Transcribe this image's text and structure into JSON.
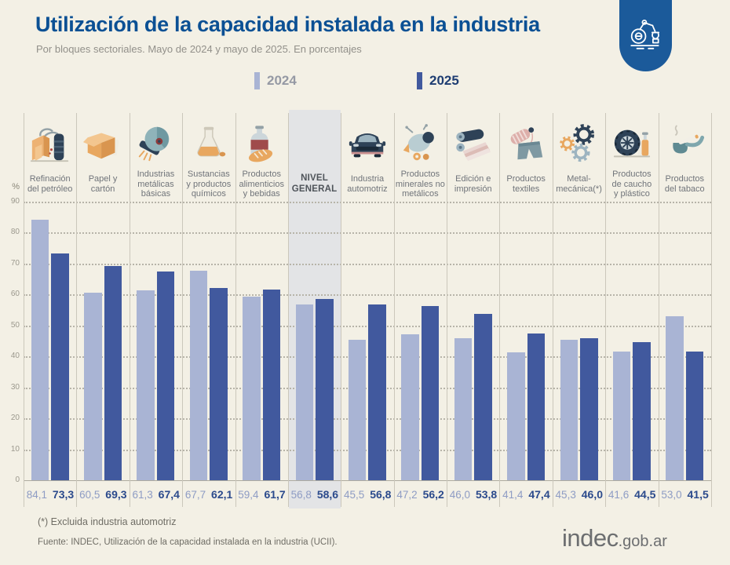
{
  "header": {
    "title": "Utilización de la capacidad instalada en la industria",
    "subtitle": "Por bloques sectoriales. Mayo de 2024 y mayo de 2025. En porcentajes"
  },
  "badge": {
    "icon": "robot-arm-icon",
    "color": "#1b5a9a"
  },
  "legend": [
    {
      "label": "2024",
      "color": "#a9b4d4",
      "text_color": "#9599a4"
    },
    {
      "label": "2025",
      "color": "#41599e",
      "text_color": "#1e3d72"
    }
  ],
  "chart_data": {
    "type": "bar",
    "title": "Utilización de la capacidad instalada en la industria",
    "subtitle": "Por bloques sectoriales. Mayo de 2024 y mayo de 2025. En porcentajes",
    "ylabel": "%",
    "ylim": [
      0,
      90
    ],
    "yticks": [
      0,
      10,
      20,
      30,
      40,
      50,
      60,
      70,
      80,
      90
    ],
    "grid": "dotted-horizontal",
    "legend_position": "top-center",
    "highlight_category": "NIVEL GENERAL",
    "categories": [
      "Refinación\ndel petróleo",
      "Papel y\ncartón",
      "Industrias\nmetálicas\nbásicas",
      "Sustancias\ny productos\nquímicos",
      "Productos\nalimenticios\ny bebidas",
      "NIVEL\nGENERAL",
      "Industria\nautomotriz",
      "Productos\nminerales no\nmetálicos",
      "Edición e\nimpresión",
      "Productos\ntextiles",
      "Metal-\nmecánica(*)",
      "Productos\nde caucho\ny plástico",
      "Productos\ndel tabaco"
    ],
    "icons": [
      "oil-refinery-icon",
      "cardboard-box-icon",
      "grinding-wheel-icon",
      "chemical-flask-icon",
      "bottle-bread-icon",
      null,
      "car-icon",
      "cement-mixer-icon",
      "printing-roller-icon",
      "textile-icon",
      "gears-icon",
      "tire-bottle-icon",
      "tobacco-pipe-icon"
    ],
    "series": [
      {
        "name": "2024",
        "color": "#a9b4d4",
        "values": [
          84.1,
          60.5,
          61.3,
          67.7,
          59.4,
          56.8,
          45.5,
          47.2,
          46.0,
          41.4,
          45.3,
          41.6,
          53.0
        ]
      },
      {
        "name": "2025",
        "color": "#41599e",
        "values": [
          73.3,
          69.3,
          67.4,
          62.1,
          61.7,
          58.6,
          56.8,
          56.2,
          53.8,
          47.4,
          46.0,
          44.5,
          41.5
        ]
      }
    ]
  },
  "footnotes": {
    "note": "(*) Excluida industria automotriz",
    "source": "Fuente: INDEC, Utilización de la capacidad instalada en la industria (UCII)."
  },
  "logo": {
    "main": "indec",
    "suffix": ".gob.ar"
  }
}
